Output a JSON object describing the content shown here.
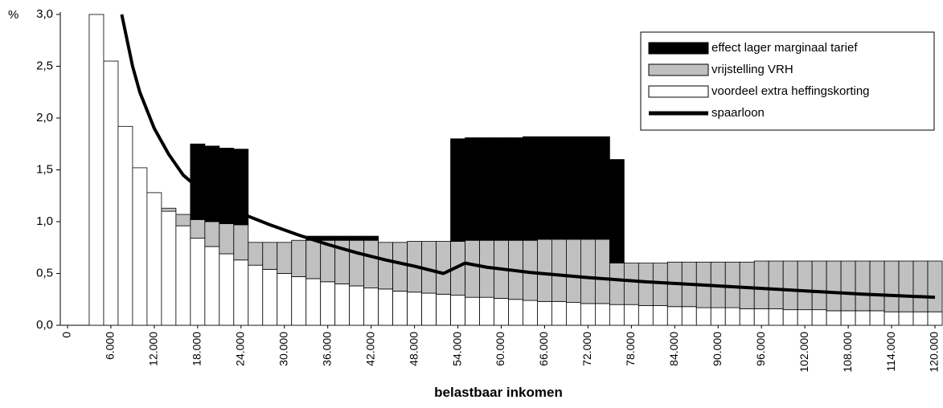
{
  "chart_data": {
    "type": "bar",
    "y_unit": "%",
    "x_label": "belastbaar inkomen",
    "x": [
      4000,
      6000,
      8000,
      10000,
      12000,
      14000,
      16000,
      18000,
      20000,
      22000,
      24000,
      26000,
      28000,
      30000,
      32000,
      34000,
      36000,
      38000,
      40000,
      42000,
      44000,
      46000,
      48000,
      50000,
      52000,
      54000,
      56000,
      58000,
      60000,
      62000,
      64000,
      66000,
      68000,
      70000,
      72000,
      74000,
      76000,
      78000,
      80000,
      82000,
      84000,
      86000,
      88000,
      90000,
      92000,
      94000,
      96000,
      98000,
      100000,
      102000,
      104000,
      106000,
      108000,
      110000,
      112000,
      114000,
      116000,
      118000,
      120000
    ],
    "series": [
      {
        "name": "effect lager marginaal tarief",
        "color": "#000000",
        "values": [
          0,
          0,
          0,
          0,
          0,
          0,
          0,
          0.73,
          0.73,
          0.73,
          0.73,
          0,
          0,
          0,
          0,
          0.04,
          0.04,
          0.04,
          0.04,
          0.04,
          0,
          0,
          0,
          0,
          0,
          0.99,
          0.99,
          0.99,
          0.99,
          0.99,
          1.0,
          0.99,
          0.99,
          0.99,
          0.99,
          0.99,
          1.0,
          0,
          0,
          0,
          0,
          0,
          0,
          0,
          0,
          0,
          0,
          0,
          0,
          0,
          0,
          0,
          0,
          0,
          0,
          0,
          0,
          0,
          0
        ]
      },
      {
        "name": "vrijstelling VRH",
        "color": "#c0c0c0",
        "values": [
          0,
          0,
          0,
          0,
          0,
          0.03,
          0.11,
          0.18,
          0.24,
          0.29,
          0.34,
          0.22,
          0.26,
          0.3,
          0.35,
          0.37,
          0.4,
          0.42,
          0.44,
          0.46,
          0.45,
          0.47,
          0.49,
          0.5,
          0.51,
          0.52,
          0.55,
          0.55,
          0.56,
          0.57,
          0.58,
          0.6,
          0.6,
          0.61,
          0.62,
          0.62,
          0.4,
          0.4,
          0.41,
          0.41,
          0.43,
          0.43,
          0.44,
          0.44,
          0.44,
          0.45,
          0.46,
          0.46,
          0.47,
          0.47,
          0.47,
          0.48,
          0.48,
          0.48,
          0.48,
          0.49,
          0.49,
          0.49,
          0.49
        ]
      },
      {
        "name": "voordeel extra heffingskorting",
        "color": "#ffffff",
        "values": [
          3.0,
          2.55,
          1.92,
          1.52,
          1.28,
          1.1,
          0.96,
          0.84,
          0.76,
          0.69,
          0.63,
          0.58,
          0.54,
          0.5,
          0.47,
          0.45,
          0.42,
          0.4,
          0.38,
          0.36,
          0.35,
          0.33,
          0.32,
          0.31,
          0.3,
          0.29,
          0.27,
          0.27,
          0.26,
          0.25,
          0.24,
          0.23,
          0.23,
          0.22,
          0.21,
          0.21,
          0.2,
          0.2,
          0.19,
          0.19,
          0.18,
          0.18,
          0.17,
          0.17,
          0.17,
          0.16,
          0.16,
          0.16,
          0.15,
          0.15,
          0.15,
          0.14,
          0.14,
          0.14,
          0.14,
          0.13,
          0.13,
          0.13,
          0.13
        ]
      },
      {
        "name": "spaarloon",
        "color": "#000000",
        "kind": "line",
        "x": [
          7500,
          9000,
          10000,
          12000,
          14000,
          16000,
          17500,
          18500,
          20000,
          22000,
          24000,
          28000,
          32000,
          36000,
          40000,
          44000,
          48000,
          52000,
          53500,
          55000,
          58000,
          64000,
          72000,
          80000,
          90000,
          100000,
          110000,
          120000
        ],
        "values": [
          3.0,
          2.5,
          2.25,
          1.9,
          1.65,
          1.45,
          1.36,
          1.42,
          1.25,
          1.15,
          1.08,
          0.97,
          0.87,
          0.78,
          0.7,
          0.63,
          0.57,
          0.5,
          0.55,
          0.6,
          0.56,
          0.51,
          0.46,
          0.42,
          0.38,
          0.34,
          0.3,
          0.27
        ]
      }
    ],
    "bar_width": 2000,
    "xlim": [
      -1000,
      121000
    ],
    "xticks": [
      0,
      {
        "value": 6000,
        "label": "6.000"
      },
      {
        "value": 12000,
        "label": "12.000"
      },
      {
        "value": 18000,
        "label": "18.000"
      },
      {
        "value": 24000,
        "label": "24.000"
      },
      {
        "value": 30000,
        "label": "30.000"
      },
      {
        "value": 36000,
        "label": "36.000"
      },
      {
        "value": 42000,
        "label": "42.000"
      },
      {
        "value": 48000,
        "label": "48.000"
      },
      {
        "value": 54000,
        "label": "54.000"
      },
      {
        "value": 60000,
        "label": "60.000"
      },
      {
        "value": 66000,
        "label": "66.000"
      },
      {
        "value": 72000,
        "label": "72.000"
      },
      {
        "value": 78000,
        "label": "78.000"
      },
      {
        "value": 84000,
        "label": "84.000"
      },
      {
        "value": 90000,
        "label": "90.000"
      },
      {
        "value": 96000,
        "label": "96.000"
      },
      {
        "value": 102000,
        "label": "102.000"
      },
      {
        "value": 108000,
        "label": "108.000"
      },
      {
        "value": 114000,
        "label": "114.000"
      },
      {
        "value": 120000,
        "label": "120.000"
      }
    ],
    "ylim": [
      0,
      3
    ],
    "yticks": [
      {
        "value": 0,
        "label": "0,0"
      },
      {
        "value": 0.5,
        "label": "0,5"
      },
      {
        "value": 1,
        "label": "1,0"
      },
      {
        "value": 1.5,
        "label": "1,5"
      },
      {
        "value": 2,
        "label": "2,0"
      },
      {
        "value": 2.5,
        "label": "2,5"
      },
      {
        "value": 3,
        "label": "3,0"
      }
    ],
    "legend": "top-right"
  }
}
